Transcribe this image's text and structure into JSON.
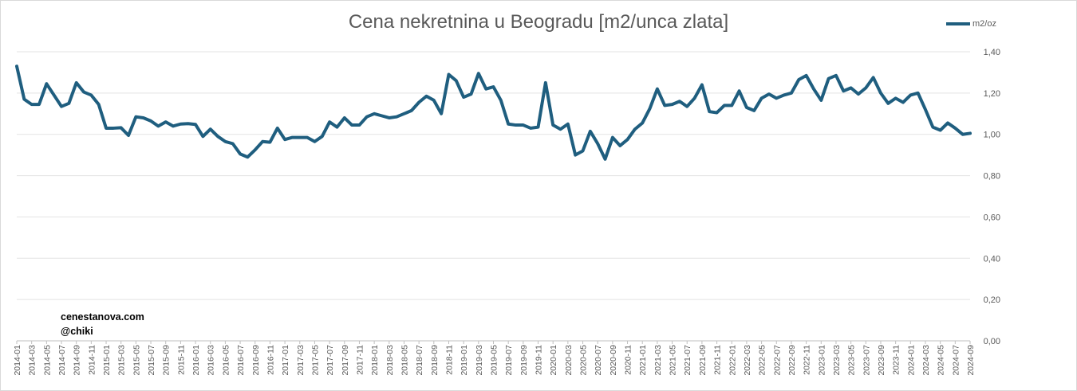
{
  "chart_data": {
    "type": "line",
    "title": "Cena nekretnina u Beogradu [m2/unca zlata]",
    "xlabel": "",
    "ylabel": "",
    "ylim": [
      0,
      1.4
    ],
    "yticks": [
      "0,00",
      "0,20",
      "0,40",
      "0,60",
      "0,80",
      "1,00",
      "1,20",
      "1,40"
    ],
    "x_start": "2014-01",
    "x_labels": [
      "2014-01",
      "2014-03",
      "2014-05",
      "2014-07",
      "2014-09",
      "2014-11",
      "2015-01",
      "2015-03",
      "2015-05",
      "2015-07",
      "2015-09",
      "2015-11",
      "2016-01",
      "2016-03",
      "2016-05",
      "2016-07",
      "2016-09",
      "2016-11",
      "2017-01",
      "2017-03",
      "2017-05",
      "2017-07",
      "2017-09",
      "2017-11",
      "2018-01",
      "2018-03",
      "2018-05",
      "2018-07",
      "2018-09",
      "2018-11",
      "2019-01",
      "2019-03",
      "2019-05",
      "2019-07",
      "2019-09",
      "2019-11",
      "2020-01",
      "2020-03",
      "2020-05",
      "2020-07",
      "2020-09",
      "2020-11",
      "2021-01",
      "2021-03",
      "2021-05",
      "2021-07",
      "2021-09",
      "2021-11",
      "2022-01",
      "2022-03",
      "2022-05",
      "2022-07",
      "2022-09",
      "2022-11",
      "2023-01",
      "2023-03",
      "2023-05",
      "2023-07",
      "2023-09",
      "2023-11",
      "2024-01",
      "2024-03",
      "2024-05",
      "2024-07",
      "2024-09"
    ],
    "grid": true,
    "legend_position": "top-right",
    "series": [
      {
        "name": "m2/oz",
        "color": "#1f5e7f",
        "values": [
          1.33,
          1.17,
          1.145,
          1.145,
          1.245,
          1.19,
          1.135,
          1.15,
          1.25,
          1.205,
          1.19,
          1.145,
          1.03,
          1.03,
          1.032,
          0.995,
          1.085,
          1.08,
          1.065,
          1.04,
          1.06,
          1.04,
          1.05,
          1.052,
          1.048,
          0.99,
          1.025,
          0.99,
          0.965,
          0.955,
          0.905,
          0.89,
          0.925,
          0.965,
          0.962,
          1.03,
          0.975,
          0.985,
          0.985,
          0.985,
          0.965,
          0.99,
          1.06,
          1.035,
          1.08,
          1.045,
          1.045,
          1.085,
          1.1,
          1.09,
          1.08,
          1.085,
          1.1,
          1.115,
          1.155,
          1.185,
          1.165,
          1.1,
          1.29,
          1.26,
          1.18,
          1.195,
          1.295,
          1.22,
          1.23,
          1.165,
          1.05,
          1.045,
          1.045,
          1.03,
          1.035,
          1.25,
          1.045,
          1.025,
          1.05,
          0.9,
          0.92,
          1.015,
          0.955,
          0.88,
          0.985,
          0.945,
          0.975,
          1.025,
          1.055,
          1.125,
          1.22,
          1.14,
          1.145,
          1.16,
          1.135,
          1.175,
          1.24,
          1.11,
          1.105,
          1.14,
          1.14,
          1.21,
          1.13,
          1.115,
          1.175,
          1.195,
          1.175,
          1.19,
          1.2,
          1.265,
          1.285,
          1.22,
          1.165,
          1.27,
          1.285,
          1.21,
          1.225,
          1.195,
          1.225,
          1.275,
          1.2,
          1.15,
          1.175,
          1.155,
          1.19,
          1.2,
          1.12,
          1.035,
          1.02,
          1.055,
          1.03,
          1.0,
          1.005
        ]
      }
    ],
    "watermark_lines": [
      "cenestanova.com",
      "@chiki"
    ]
  }
}
